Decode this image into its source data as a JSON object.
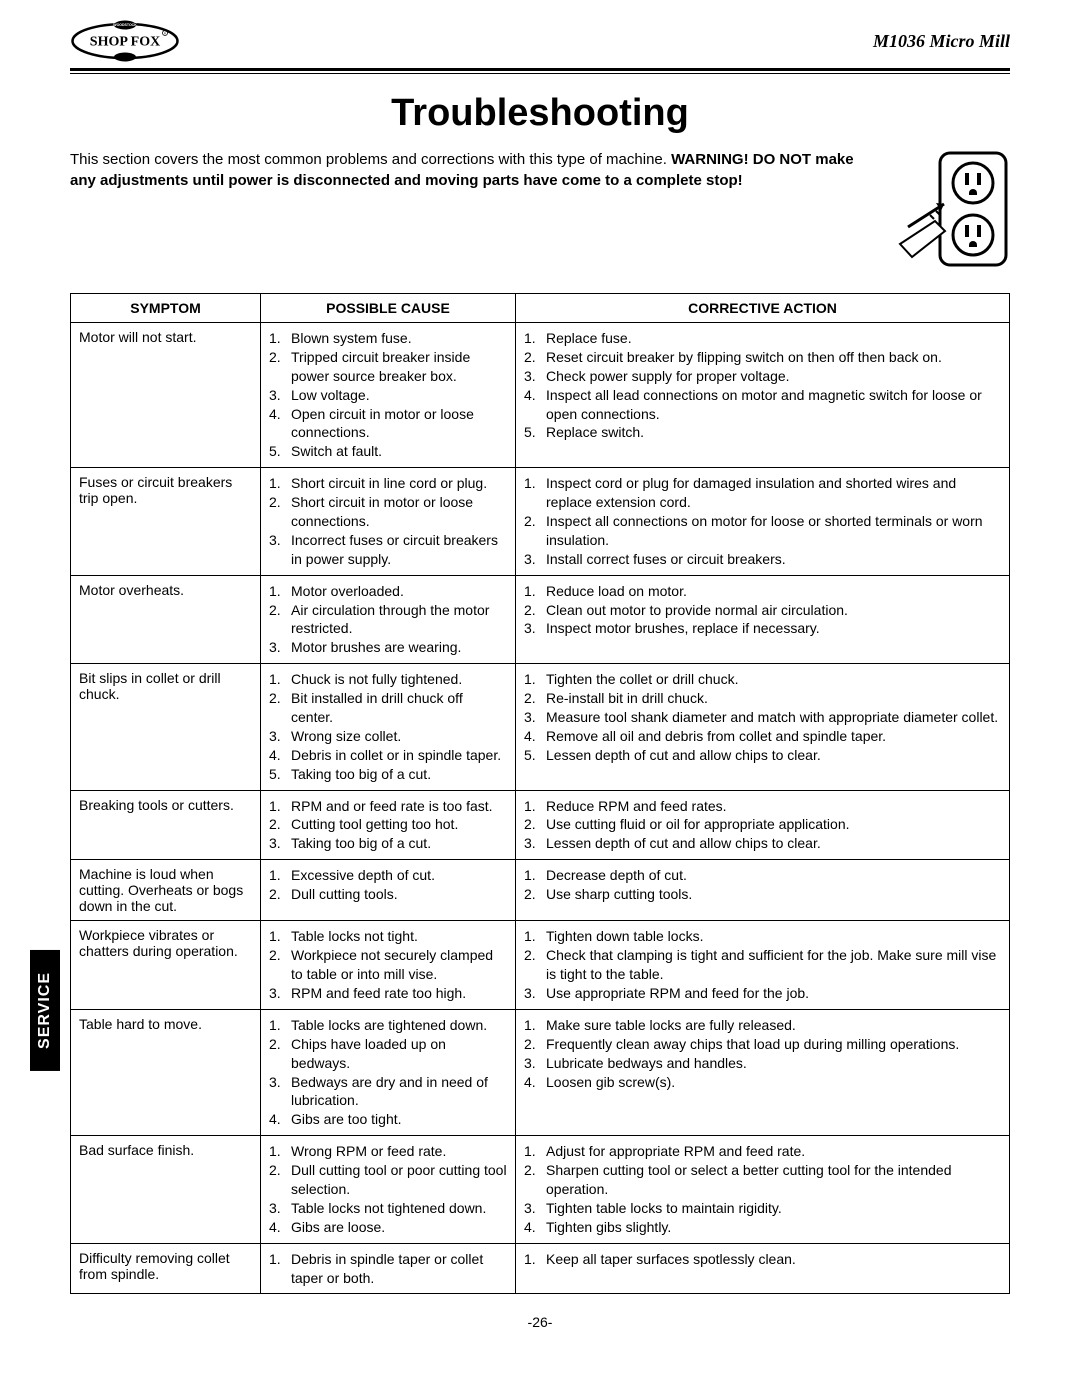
{
  "header": {
    "brand": "SHOP FOX",
    "model": "M1036 Micro Mill"
  },
  "title": "Troubleshooting",
  "intro": {
    "plain": "This section covers the most common problems and corrections with this type of machine. ",
    "warn": "WARNING! DO NOT make any adjustments until power is disconnected and moving parts have come to a complete stop!"
  },
  "tab": "SERVICE",
  "page_number": "-26-",
  "columns": {
    "symptom": "SYMPTOM",
    "cause": "POSSIBLE CAUSE",
    "action": "CORRECTIVE ACTION"
  },
  "rows": [
    {
      "symptom": "Motor will not start.",
      "causes": [
        "Blown system fuse.",
        "Tripped circuit breaker inside power source breaker box.",
        "Low voltage.",
        "Open circuit in motor or loose connections.",
        "Switch at fault."
      ],
      "actions": [
        "Replace fuse.",
        "Reset circuit breaker by flipping switch on then off then back on.",
        "Check power supply for proper voltage.",
        "Inspect all lead connections on motor and magnetic switch for loose or open connections.",
        "Replace switch."
      ]
    },
    {
      "symptom": "Fuses or circuit breakers trip open.",
      "causes": [
        "Short circuit in line cord or plug.",
        "Short circuit in motor or loose connections.",
        "Incorrect fuses or circuit breakers in power supply."
      ],
      "actions": [
        "Inspect cord or plug for damaged insulation and shorted wires and replace extension cord.",
        "Inspect all connections on motor for loose or shorted terminals or worn insulation.",
        "Install correct fuses or circuit breakers."
      ]
    },
    {
      "symptom": "Motor overheats.",
      "causes": [
        "Motor overloaded.",
        "Air circulation through the motor restricted.",
        "Motor brushes are wearing."
      ],
      "actions": [
        "Reduce load on motor.",
        "Clean out motor to provide normal air circulation.",
        "Inspect motor brushes, replace if necessary."
      ]
    },
    {
      "symptom": "Bit slips in collet or drill chuck.",
      "causes": [
        "Chuck is not fully tightened.",
        "Bit installed in drill chuck off center.",
        "Wrong size collet.",
        "Debris in collet or in spindle taper.",
        "Taking too big of a cut."
      ],
      "actions": [
        "Tighten the collet or drill chuck.",
        "Re-install bit in drill chuck.",
        "Measure tool shank diameter and match with appropriate diameter collet.",
        "Remove all oil and debris from collet and spindle taper.",
        "Lessen depth of cut and allow chips to clear."
      ]
    },
    {
      "symptom": "Breaking tools or cutters.",
      "causes": [
        "RPM and or feed rate is too fast.",
        "Cutting tool getting too hot.",
        "Taking too big of a cut."
      ],
      "actions": [
        "Reduce RPM and feed rates.",
        "Use cutting fluid or oil for appropriate application.",
        "Lessen depth of cut and allow chips to clear."
      ]
    },
    {
      "symptom": "Machine is loud when cutting. Overheats or bogs down in the cut.",
      "causes": [
        "Excessive depth of cut.",
        "Dull cutting tools."
      ],
      "actions": [
        "Decrease depth of cut.",
        "Use sharp cutting tools."
      ]
    },
    {
      "symptom": "Workpiece vibrates or chatters during operation.",
      "causes": [
        "Table locks not tight.",
        "Workpiece not securely clamped to table or into mill vise.",
        "RPM and feed rate too high."
      ],
      "actions": [
        "Tighten down table locks.",
        "Check that clamping is tight and sufficient for the job. Make sure mill vise is tight to the table.",
        "Use appropriate RPM and feed for the job."
      ]
    },
    {
      "symptom": "Table hard to move.",
      "causes": [
        "Table locks are tightened down.",
        "Chips have loaded up on bedways.",
        "Bedways are dry and in need of lubrication.",
        "Gibs are too tight."
      ],
      "actions": [
        "Make sure table locks are fully released.",
        "Frequently clean away chips that load up during milling operations.",
        "Lubricate bedways and handles.",
        "Loosen gib screw(s)."
      ]
    },
    {
      "symptom": "Bad surface finish.",
      "causes": [
        "Wrong RPM or feed rate.",
        "Dull cutting tool or poor cutting tool selection.",
        "Table locks not tightened down.",
        "Gibs are loose."
      ],
      "actions": [
        "Adjust for appropriate RPM and feed rate.",
        "Sharpen cutting tool or select a better cutting tool for the intended operation.",
        "Tighten table locks to maintain rigidity.",
        "Tighten gibs slightly."
      ]
    },
    {
      "symptom": "Difficulty removing collet from spindle.",
      "symptom_justify": true,
      "causes": [
        "Debris in spindle taper or collet taper or both."
      ],
      "actions": [
        "Keep all taper surfaces spotlessly clean."
      ]
    }
  ]
}
